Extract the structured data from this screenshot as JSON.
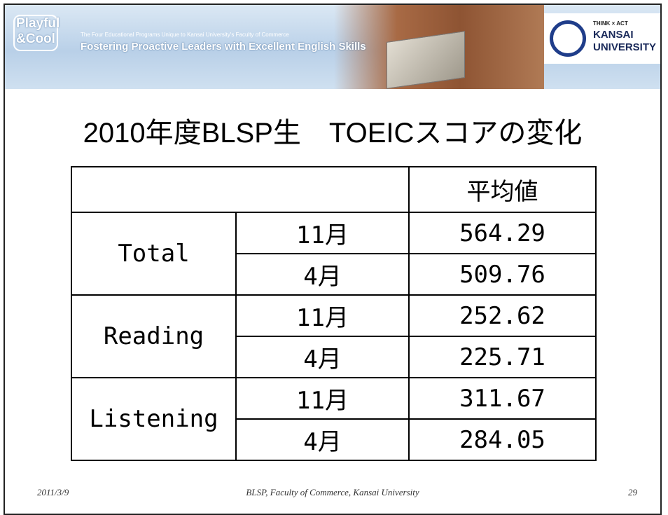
{
  "header": {
    "logo_line1": "Playful",
    "logo_line2": "&Cool",
    "subtitle": "The Four Educational Programs Unique to Kansai University's Faculty of Commerce",
    "tagline": "Fostering Proactive Leaders with Excellent English Skills",
    "university": {
      "motto": "THINK × ACT",
      "name_line1": "KANSAI",
      "name_line2": "UNIVERSITY"
    }
  },
  "title": "2010年度BLSP生　TOEICスコアの変化",
  "table": {
    "column_header": "平均値",
    "groups": [
      {
        "label": "Total",
        "rows": [
          {
            "month": "11月",
            "value": "564.29"
          },
          {
            "month": "4月",
            "value": "509.76"
          }
        ]
      },
      {
        "label": "Reading",
        "rows": [
          {
            "month": "11月",
            "value": "252.62"
          },
          {
            "month": "4月",
            "value": "225.71"
          }
        ]
      },
      {
        "label": "Listening",
        "rows": [
          {
            "month": "11月",
            "value": "311.67"
          },
          {
            "month": "4月",
            "value": "284.05"
          }
        ]
      }
    ]
  },
  "footer": {
    "date": "2011/3/9",
    "center": "BLSP, Faculty of Commerce, Kansai University",
    "page": "29"
  }
}
